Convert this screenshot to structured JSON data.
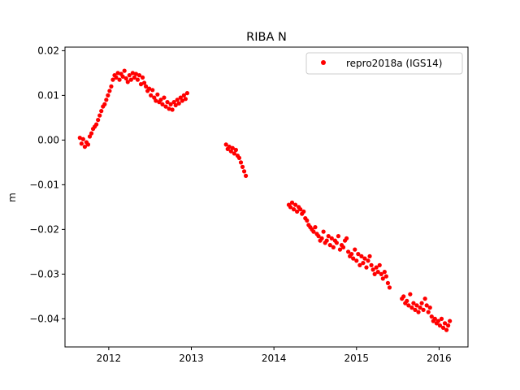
{
  "chart_data": {
    "type": "scatter",
    "title": "RIBA N",
    "xlabel": "",
    "ylabel": "m",
    "xlim": [
      2011.47,
      2016.35
    ],
    "ylim": [
      -0.0463,
      0.0208
    ],
    "xticks": [
      2012,
      2013,
      2014,
      2015,
      2016
    ],
    "xtick_labels": [
      "2012",
      "2013",
      "2014",
      "2015",
      "2016"
    ],
    "yticks": [
      0.02,
      0.01,
      0.0,
      -0.01,
      -0.02,
      -0.03,
      -0.04
    ],
    "ytick_labels": [
      "0.02",
      "0.01",
      "0.00",
      "−0.01",
      "−0.02",
      "−0.03",
      "−0.04"
    ],
    "grid": false,
    "legend_position": "top-right",
    "series": [
      {
        "name": "repro2018a (IGS14)",
        "color": "#ff0000",
        "marker": "circle",
        "x": [
          2011.65,
          2011.67,
          2011.69,
          2011.71,
          2011.73,
          2011.75,
          2011.77,
          2011.79,
          2011.81,
          2011.83,
          2011.85,
          2011.87,
          2011.89,
          2011.91,
          2011.93,
          2011.95,
          2011.97,
          2011.99,
          2012.01,
          2012.03,
          2012.05,
          2012.07,
          2012.09,
          2012.11,
          2012.13,
          2012.15,
          2012.17,
          2012.19,
          2012.21,
          2012.23,
          2012.25,
          2012.27,
          2012.29,
          2012.31,
          2012.33,
          2012.35,
          2012.37,
          2012.39,
          2012.41,
          2012.43,
          2012.45,
          2012.47,
          2012.49,
          2012.51,
          2012.53,
          2012.55,
          2012.57,
          2012.59,
          2012.61,
          2012.63,
          2012.65,
          2012.67,
          2012.69,
          2012.71,
          2012.73,
          2012.75,
          2012.77,
          2012.79,
          2012.81,
          2012.83,
          2012.85,
          2012.87,
          2012.89,
          2012.91,
          2012.93,
          2012.95,
          2013.42,
          2013.44,
          2013.46,
          2013.48,
          2013.5,
          2013.52,
          2013.54,
          2013.56,
          2013.58,
          2013.6,
          2013.62,
          2013.64,
          2013.66,
          2014.18,
          2014.2,
          2014.22,
          2014.24,
          2014.26,
          2014.28,
          2014.3,
          2014.32,
          2014.34,
          2014.36,
          2014.38,
          2014.4,
          2014.42,
          2014.44,
          2014.46,
          2014.48,
          2014.5,
          2014.52,
          2014.54,
          2014.56,
          2014.58,
          2014.6,
          2014.62,
          2014.64,
          2014.66,
          2014.68,
          2014.7,
          2014.72,
          2014.74,
          2014.76,
          2014.78,
          2014.8,
          2014.82,
          2014.84,
          2014.86,
          2014.88,
          2014.9,
          2014.92,
          2014.94,
          2014.96,
          2014.98,
          2015.0,
          2015.02,
          2015.04,
          2015.06,
          2015.08,
          2015.1,
          2015.12,
          2015.14,
          2015.16,
          2015.18,
          2015.2,
          2015.22,
          2015.24,
          2015.26,
          2015.28,
          2015.3,
          2015.32,
          2015.34,
          2015.36,
          2015.38,
          2015.4,
          2015.55,
          2015.57,
          2015.59,
          2015.61,
          2015.63,
          2015.65,
          2015.67,
          2015.69,
          2015.71,
          2015.73,
          2015.75,
          2015.77,
          2015.79,
          2015.81,
          2015.83,
          2015.85,
          2015.87,
          2015.89,
          2015.91,
          2015.93,
          2015.95,
          2015.97,
          2015.99,
          2016.01,
          2016.03,
          2016.05,
          2016.07,
          2016.09,
          2016.11,
          2016.13
        ],
        "y": [
          0.0005,
          -0.0008,
          0.0002,
          -0.0015,
          -0.0005,
          -0.001,
          0.0008,
          0.0015,
          0.0025,
          0.003,
          0.0035,
          0.0045,
          0.0055,
          0.0065,
          0.0075,
          0.008,
          0.009,
          0.01,
          0.011,
          0.012,
          0.0135,
          0.0145,
          0.014,
          0.015,
          0.0135,
          0.0148,
          0.0142,
          0.0155,
          0.0138,
          0.013,
          0.0145,
          0.0135,
          0.015,
          0.014,
          0.0148,
          0.0135,
          0.0145,
          0.0125,
          0.014,
          0.0128,
          0.012,
          0.011,
          0.0115,
          0.01,
          0.0112,
          0.0095,
          0.0088,
          0.0102,
          0.0085,
          0.009,
          0.008,
          0.0095,
          0.0075,
          0.0085,
          0.007,
          0.008,
          0.0068,
          0.0085,
          0.0078,
          0.009,
          0.0082,
          0.0095,
          0.0088,
          0.01,
          0.0092,
          0.0105,
          -0.001,
          -0.002,
          -0.0015,
          -0.0025,
          -0.0018,
          -0.003,
          -0.0022,
          -0.0035,
          -0.004,
          -0.005,
          -0.006,
          -0.007,
          -0.008,
          -0.0145,
          -0.015,
          -0.014,
          -0.0155,
          -0.0145,
          -0.016,
          -0.015,
          -0.0155,
          -0.0165,
          -0.016,
          -0.0175,
          -0.018,
          -0.019,
          -0.0195,
          -0.02,
          -0.0205,
          -0.0195,
          -0.021,
          -0.0215,
          -0.0225,
          -0.022,
          -0.0205,
          -0.023,
          -0.0225,
          -0.0215,
          -0.0235,
          -0.022,
          -0.024,
          -0.0225,
          -0.023,
          -0.0215,
          -0.0245,
          -0.0235,
          -0.024,
          -0.0225,
          -0.022,
          -0.025,
          -0.026,
          -0.0255,
          -0.0265,
          -0.0245,
          -0.027,
          -0.0255,
          -0.028,
          -0.026,
          -0.0275,
          -0.0265,
          -0.0285,
          -0.027,
          -0.026,
          -0.028,
          -0.029,
          -0.03,
          -0.0285,
          -0.0295,
          -0.028,
          -0.03,
          -0.031,
          -0.0295,
          -0.0305,
          -0.032,
          -0.033,
          -0.0355,
          -0.035,
          -0.0365,
          -0.036,
          -0.037,
          -0.0345,
          -0.0375,
          -0.0365,
          -0.038,
          -0.037,
          -0.0385,
          -0.0375,
          -0.0365,
          -0.038,
          -0.0355,
          -0.037,
          -0.0385,
          -0.0375,
          -0.0395,
          -0.0405,
          -0.04,
          -0.041,
          -0.0405,
          -0.0415,
          -0.04,
          -0.042,
          -0.041,
          -0.0425,
          -0.0415,
          -0.0405
        ]
      }
    ]
  }
}
